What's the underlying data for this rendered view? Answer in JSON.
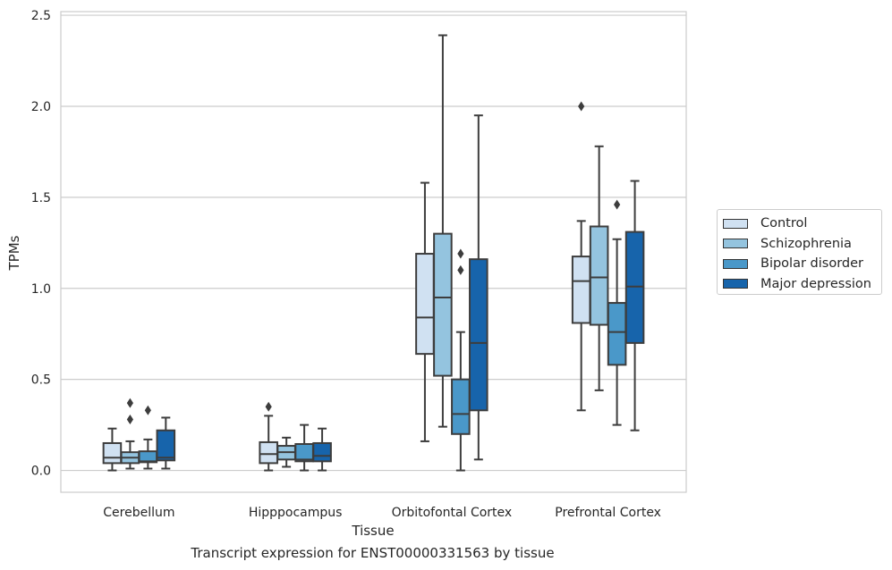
{
  "chart_data": {
    "type": "box",
    "title": "Transcript expression for ENST00000331563 by tissue",
    "xlabel": "Tissue",
    "ylabel": "TPMs",
    "categories": [
      "Cerebellum",
      "Hipppocampus",
      "Orbitofontal Cortex",
      "Prefrontal Cortex"
    ],
    "ylim": [
      -0.12,
      2.52
    ],
    "yticks": [
      "0.0",
      "0.5",
      "1.0",
      "1.5",
      "2.0",
      "2.5"
    ],
    "grid": "horizontal",
    "legend_position": "right",
    "series": [
      {
        "name": "Control",
        "color": "#d0e1f2",
        "boxes": [
          {
            "whislo": 0.0,
            "q1": 0.04,
            "med": 0.07,
            "q3": 0.15,
            "whishi": 0.23,
            "fliers": []
          },
          {
            "whislo": 0.0,
            "q1": 0.04,
            "med": 0.09,
            "q3": 0.155,
            "whishi": 0.3,
            "fliers": [
              0.35
            ]
          },
          {
            "whislo": 0.16,
            "q1": 0.64,
            "med": 0.84,
            "q3": 1.19,
            "whishi": 1.58,
            "fliers": []
          },
          {
            "whislo": 0.33,
            "q1": 0.81,
            "med": 1.04,
            "q3": 1.175,
            "whishi": 1.37,
            "fliers": [
              2.0
            ]
          }
        ]
      },
      {
        "name": "Schizophrenia",
        "color": "#94c4df",
        "boxes": [
          {
            "whislo": 0.01,
            "q1": 0.04,
            "med": 0.07,
            "q3": 0.1,
            "whishi": 0.16,
            "fliers": [
              0.28,
              0.37
            ]
          },
          {
            "whislo": 0.02,
            "q1": 0.06,
            "med": 0.1,
            "q3": 0.135,
            "whishi": 0.18,
            "fliers": []
          },
          {
            "whislo": 0.24,
            "q1": 0.52,
            "med": 0.95,
            "q3": 1.3,
            "whishi": 2.39,
            "fliers": []
          },
          {
            "whislo": 0.44,
            "q1": 0.8,
            "med": 1.06,
            "q3": 1.34,
            "whishi": 1.78,
            "fliers": []
          }
        ]
      },
      {
        "name": "Bipolar disorder",
        "color": "#4a98c9",
        "boxes": [
          {
            "whislo": 0.01,
            "q1": 0.045,
            "med": 0.05,
            "q3": 0.105,
            "whishi": 0.17,
            "fliers": [
              0.33
            ]
          },
          {
            "whislo": 0.0,
            "q1": 0.05,
            "med": 0.06,
            "q3": 0.145,
            "whishi": 0.25,
            "fliers": []
          },
          {
            "whislo": 0.0,
            "q1": 0.2,
            "med": 0.31,
            "q3": 0.5,
            "whishi": 0.76,
            "fliers": [
              1.1,
              1.19
            ]
          },
          {
            "whislo": 0.25,
            "q1": 0.58,
            "med": 0.76,
            "q3": 0.92,
            "whishi": 1.27,
            "fliers": [
              1.46
            ]
          }
        ]
      },
      {
        "name": "Major depression",
        "color": "#1764ab",
        "boxes": [
          {
            "whislo": 0.01,
            "q1": 0.055,
            "med": 0.07,
            "q3": 0.22,
            "whishi": 0.29,
            "fliers": []
          },
          {
            "whislo": 0.0,
            "q1": 0.05,
            "med": 0.08,
            "q3": 0.15,
            "whishi": 0.23,
            "fliers": []
          },
          {
            "whislo": 0.06,
            "q1": 0.33,
            "med": 0.7,
            "q3": 1.16,
            "whishi": 1.95,
            "fliers": []
          },
          {
            "whislo": 0.22,
            "q1": 0.7,
            "med": 1.01,
            "q3": 1.31,
            "whishi": 1.59,
            "fliers": []
          }
        ]
      }
    ]
  }
}
